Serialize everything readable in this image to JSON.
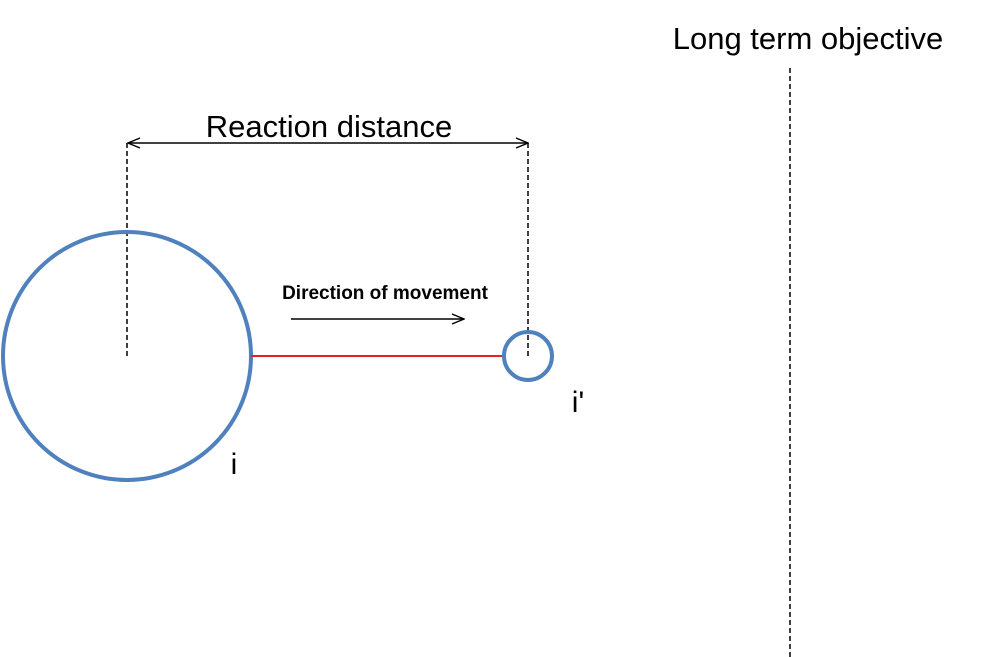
{
  "labels": {
    "long_term_objective": "Long term objective",
    "reaction_distance": "Reaction distance",
    "direction_of_movement": "Direction of movement",
    "agent_i": "i",
    "agent_i_prime": "i'"
  },
  "colors": {
    "circle_stroke": "#4F81BD",
    "connector_line": "#E8201E",
    "ink": "#000000",
    "background": "#FFFFFF"
  }
}
